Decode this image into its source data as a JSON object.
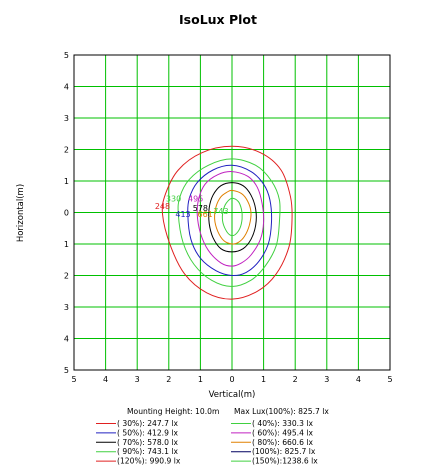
{
  "chart_data": {
    "type": "line",
    "title": "IsoLux Plot",
    "xlabel": "Vertical(m)",
    "ylabel": "Horizontal(m)",
    "xlim": [
      -5,
      5
    ],
    "ylim": [
      -5,
      5
    ],
    "x_tick_labels": [
      "5",
      "4",
      "3",
      "2",
      "1",
      "0",
      "1",
      "2",
      "3",
      "4",
      "5"
    ],
    "y_tick_labels": [
      "5",
      "4",
      "3",
      "2",
      "1",
      "0",
      "1",
      "2",
      "3",
      "4",
      "5"
    ],
    "grid": true,
    "grid_color": "#00c000",
    "mounting_height": "Mounting Height: 10.0m",
    "max_lux": "Max Lux(100%): 825.7 lx",
    "series": [
      {
        "name": "( 30%): 247.7 lx",
        "color": "#e02020",
        "label": "248",
        "points": [
          [
            0,
            2.1
          ],
          [
            0.9,
            1.9
          ],
          [
            1.55,
            1.35
          ],
          [
            1.85,
            0.5
          ],
          [
            1.9,
            -0.25
          ],
          [
            1.8,
            -1.1
          ],
          [
            1.4,
            -1.95
          ],
          [
            0.8,
            -2.5
          ],
          [
            0,
            -2.75
          ],
          [
            -0.8,
            -2.55
          ],
          [
            -1.5,
            -1.95
          ],
          [
            -1.95,
            -1.05
          ],
          [
            -2.2,
            -0.05
          ],
          [
            -2.1,
            0.6
          ],
          [
            -1.7,
            1.35
          ],
          [
            -0.95,
            1.9
          ]
        ]
      },
      {
        "name": "( 40%): 330.3 lx",
        "color": "#40d040",
        "label": "330",
        "points": [
          [
            0,
            1.7
          ],
          [
            0.75,
            1.5
          ],
          [
            1.25,
            1.0
          ],
          [
            1.5,
            0.4
          ],
          [
            1.5,
            -0.3
          ],
          [
            1.4,
            -1.05
          ],
          [
            1.05,
            -1.7
          ],
          [
            0.6,
            -2.15
          ],
          [
            0,
            -2.35
          ],
          [
            -0.65,
            -2.15
          ],
          [
            -1.2,
            -1.65
          ],
          [
            -1.55,
            -0.95
          ],
          [
            -1.7,
            -0.05
          ],
          [
            -1.65,
            0.5
          ],
          [
            -1.35,
            1.05
          ],
          [
            -0.75,
            1.5
          ]
        ]
      },
      {
        "name": "( 50%): 412.9 lx",
        "color": "#2020c0",
        "label": "413",
        "points": [
          [
            0,
            1.5
          ],
          [
            0.6,
            1.3
          ],
          [
            1.0,
            0.9
          ],
          [
            1.2,
            0.4
          ],
          [
            1.25,
            -0.3
          ],
          [
            1.15,
            -1.0
          ],
          [
            0.85,
            -1.55
          ],
          [
            0.45,
            -1.9
          ],
          [
            0,
            -2.0
          ],
          [
            -0.5,
            -1.85
          ],
          [
            -1.0,
            -1.45
          ],
          [
            -1.3,
            -0.85
          ],
          [
            -1.4,
            -0.05
          ],
          [
            -1.35,
            0.45
          ],
          [
            -1.1,
            0.95
          ],
          [
            -0.6,
            1.35
          ]
        ]
      },
      {
        "name": "( 60%): 495.4 lx",
        "color": "#c020c0",
        "label": "495",
        "points": [
          [
            0,
            1.3
          ],
          [
            0.5,
            1.15
          ],
          [
            0.8,
            0.8
          ],
          [
            0.95,
            0.3
          ],
          [
            1.0,
            -0.3
          ],
          [
            0.9,
            -0.85
          ],
          [
            0.6,
            -1.35
          ],
          [
            0.3,
            -1.6
          ],
          [
            0,
            -1.7
          ],
          [
            -0.35,
            -1.6
          ],
          [
            -0.75,
            -1.2
          ],
          [
            -1.0,
            -0.65
          ],
          [
            -1.1,
            -0.05
          ],
          [
            -1.05,
            0.45
          ],
          [
            -0.85,
            0.9
          ],
          [
            -0.45,
            1.2
          ]
        ]
      },
      {
        "name": "( 70%): 578.0 lx",
        "color": "#000000",
        "label": "578",
        "points": [
          [
            0,
            0.95
          ],
          [
            0.35,
            0.85
          ],
          [
            0.6,
            0.55
          ],
          [
            0.75,
            0.1
          ],
          [
            0.75,
            -0.4
          ],
          [
            0.6,
            -0.85
          ],
          [
            0.35,
            -1.15
          ],
          [
            0,
            -1.25
          ],
          [
            -0.35,
            -1.15
          ],
          [
            -0.6,
            -0.8
          ],
          [
            -0.72,
            -0.35
          ],
          [
            -0.72,
            0.15
          ],
          [
            -0.6,
            0.55
          ],
          [
            -0.35,
            0.85
          ]
        ]
      },
      {
        "name": "( 80%): 660.6 lx",
        "color": "#e08000",
        "label": "661",
        "points": [
          [
            0,
            0.7
          ],
          [
            0.3,
            0.6
          ],
          [
            0.5,
            0.35
          ],
          [
            0.6,
            0.0
          ],
          [
            0.55,
            -0.4
          ],
          [
            0.4,
            -0.75
          ],
          [
            0.2,
            -0.95
          ],
          [
            0,
            -1.0
          ],
          [
            -0.25,
            -0.9
          ],
          [
            -0.45,
            -0.6
          ],
          [
            -0.55,
            -0.2
          ],
          [
            -0.5,
            0.2
          ],
          [
            -0.35,
            0.5
          ],
          [
            -0.15,
            0.65
          ]
        ]
      },
      {
        "name": "( 90%): 743.1 lx",
        "color": "#40d040",
        "label": "743",
        "points": [
          [
            0,
            0.45
          ],
          [
            0.2,
            0.35
          ],
          [
            0.3,
            0.1
          ],
          [
            0.32,
            -0.2
          ],
          [
            0.25,
            -0.5
          ],
          [
            0.1,
            -0.7
          ],
          [
            -0.05,
            -0.72
          ],
          [
            -0.2,
            -0.55
          ],
          [
            -0.3,
            -0.25
          ],
          [
            -0.28,
            0.05
          ],
          [
            -0.18,
            0.3
          ]
        ]
      },
      {
        "name": "(100%): 825.7 lx",
        "color": "#000060",
        "label": "",
        "points": []
      },
      {
        "name": "(120%): 990.9 lx",
        "color": "#e02020",
        "label": "",
        "points": []
      },
      {
        "name": "(150%):1238.6 lx",
        "color": "#40d040",
        "label": "",
        "points": []
      }
    ]
  }
}
